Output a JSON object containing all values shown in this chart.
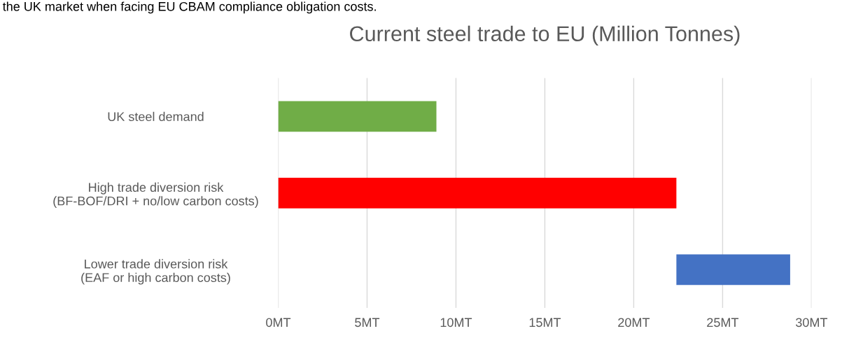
{
  "chart_data": {
    "type": "bar",
    "orientation": "horizontal",
    "title": "Current steel trade to EU (Million Tonnes)",
    "categories": [
      "UK steel demand",
      "High trade diversion risk\n(BF-BOF/DRI + no/low carbon costs)",
      "Lower trade diversion risk\n(EAF or high carbon costs)"
    ],
    "values": [
      8.9,
      22.4,
      6.4
    ],
    "base": [
      0,
      0,
      22.4
    ],
    "colors": [
      "#70ad47",
      "#ff0000",
      "#4472c4"
    ],
    "xlim": [
      0,
      30
    ],
    "xticks": [
      {
        "value": 0,
        "label": "0MT"
      },
      {
        "value": 5,
        "label": "5MT"
      },
      {
        "value": 10,
        "label": "10MT"
      },
      {
        "value": 15,
        "label": "15MT"
      },
      {
        "value": 20,
        "label": "20MT"
      },
      {
        "value": 25,
        "label": "25MT"
      },
      {
        "value": 30,
        "label": "30MT"
      }
    ],
    "grid": "x",
    "annotations": [
      "the UK market when facing EU CBAM compliance obligation costs."
    ]
  }
}
